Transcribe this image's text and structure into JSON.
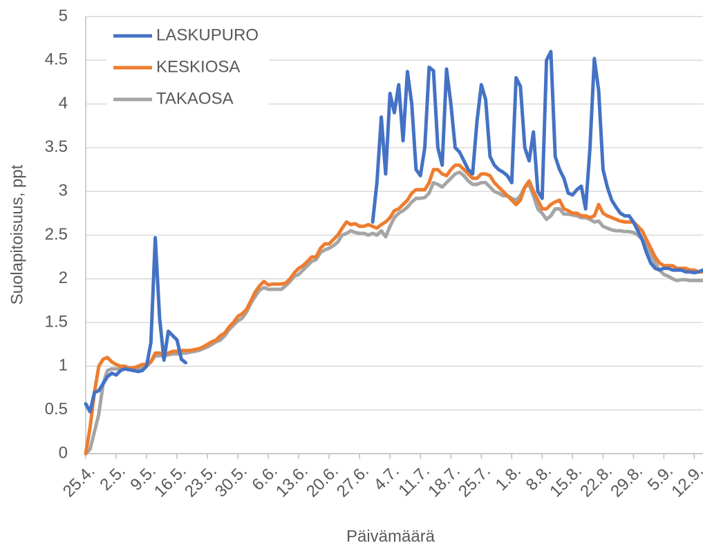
{
  "chart_data": {
    "type": "line",
    "x_label": "Päivämäärä",
    "y_label": "Suolapitoisuus, ppt",
    "categories": [
      "25.4.",
      null,
      null,
      null,
      null,
      null,
      null,
      "2.5.",
      null,
      null,
      null,
      null,
      null,
      null,
      "9.5.",
      null,
      null,
      null,
      null,
      null,
      null,
      "16.5.",
      null,
      null,
      null,
      null,
      null,
      null,
      "23.5.",
      null,
      null,
      null,
      null,
      null,
      null,
      "30.5.",
      null,
      null,
      null,
      null,
      null,
      null,
      "6.6.",
      null,
      null,
      null,
      null,
      null,
      null,
      "13.6.",
      null,
      null,
      null,
      null,
      null,
      null,
      "20.6.",
      null,
      null,
      null,
      null,
      null,
      null,
      "27.6.",
      null,
      null,
      null,
      null,
      null,
      null,
      "4.7.",
      null,
      null,
      null,
      null,
      null,
      null,
      "11.7.",
      null,
      null,
      null,
      null,
      null,
      null,
      "18.7.",
      null,
      null,
      null,
      null,
      null,
      null,
      "25.7.",
      null,
      null,
      null,
      null,
      null,
      null,
      "1.8.",
      null,
      null,
      null,
      null,
      null,
      null,
      "8.8.",
      null,
      null,
      null,
      null,
      null,
      null,
      "15.8.",
      null,
      null,
      null,
      null,
      null,
      null,
      "22.8.",
      null,
      null,
      null,
      null,
      null,
      null,
      "29.8.",
      null,
      null,
      null,
      null,
      null,
      null,
      "5.9.",
      null,
      null,
      null,
      null,
      null,
      null,
      "12.9.",
      null,
      null
    ],
    "series": [
      {
        "name": "LASKUPURO",
        "color": "#4472c4",
        "values": [
          0.57,
          0.48,
          0.7,
          0.72,
          0.8,
          0.88,
          0.92,
          0.9,
          0.95,
          0.97,
          0.96,
          0.95,
          0.94,
          0.95,
          1.0,
          1.27,
          2.47,
          1.55,
          1.07,
          1.4,
          1.35,
          1.3,
          1.08,
          1.04,
          null,
          null,
          null,
          null,
          null,
          null,
          null,
          null,
          null,
          null,
          null,
          null,
          null,
          null,
          null,
          null,
          null,
          null,
          null,
          null,
          null,
          null,
          null,
          null,
          null,
          null,
          null,
          null,
          null,
          null,
          null,
          null,
          null,
          null,
          null,
          null,
          null,
          null,
          null,
          null,
          null,
          null,
          2.65,
          3.1,
          3.85,
          3.2,
          4.12,
          3.9,
          4.22,
          3.58,
          4.37,
          4.0,
          3.25,
          3.18,
          3.5,
          4.42,
          4.38,
          3.5,
          3.3,
          4.4,
          4.0,
          3.5,
          3.45,
          3.35,
          3.25,
          3.2,
          3.8,
          4.22,
          4.05,
          3.4,
          3.3,
          3.25,
          3.22,
          3.18,
          3.1,
          4.3,
          4.2,
          3.5,
          3.35,
          3.68,
          3.0,
          2.92,
          4.5,
          4.6,
          3.4,
          3.25,
          3.15,
          2.98,
          2.96,
          3.02,
          3.06,
          2.8,
          3.5,
          4.52,
          4.15,
          3.25,
          3.05,
          2.9,
          2.82,
          2.75,
          2.72,
          2.72,
          2.65,
          2.55,
          2.45,
          2.3,
          2.18,
          2.12,
          2.1,
          2.12,
          2.12,
          2.1,
          2.1,
          2.1,
          2.08,
          2.08,
          2.07,
          2.08,
          2.1
        ]
      },
      {
        "name": "KESKIOSA",
        "color": "#ed7d31",
        "values": [
          0,
          0.3,
          0.7,
          1.0,
          1.08,
          1.1,
          1.05,
          1.02,
          1.0,
          1.0,
          0.98,
          0.98,
          1.0,
          1.02,
          1.02,
          1.05,
          1.15,
          1.15,
          1.13,
          1.15,
          1.17,
          1.17,
          1.18,
          1.18,
          1.18,
          1.19,
          1.2,
          1.22,
          1.25,
          1.28,
          1.3,
          1.35,
          1.38,
          1.45,
          1.5,
          1.57,
          1.6,
          1.65,
          1.75,
          1.85,
          1.92,
          1.97,
          1.93,
          1.94,
          1.94,
          1.94,
          1.95,
          2.0,
          2.07,
          2.12,
          2.15,
          2.2,
          2.25,
          2.25,
          2.35,
          2.4,
          2.4,
          2.45,
          2.5,
          2.58,
          2.65,
          2.62,
          2.63,
          2.6,
          2.6,
          2.62,
          2.6,
          2.58,
          2.62,
          2.65,
          2.7,
          2.78,
          2.8,
          2.85,
          2.9,
          2.98,
          3.02,
          3.02,
          3.02,
          3.1,
          3.25,
          3.25,
          3.2,
          3.18,
          3.25,
          3.3,
          3.3,
          3.25,
          3.2,
          3.15,
          3.15,
          3.2,
          3.2,
          3.18,
          3.1,
          3.05,
          3.0,
          2.95,
          2.9,
          2.85,
          2.9,
          3.05,
          3.12,
          3.0,
          2.9,
          2.8,
          2.8,
          2.85,
          2.88,
          2.9,
          2.8,
          2.78,
          2.75,
          2.75,
          2.72,
          2.72,
          2.7,
          2.72,
          2.85,
          2.75,
          2.72,
          2.7,
          2.68,
          2.66,
          2.65,
          2.65,
          2.65,
          2.6,
          2.55,
          2.45,
          2.35,
          2.25,
          2.18,
          2.15,
          2.15,
          2.15,
          2.12,
          2.12,
          2.12,
          2.1,
          2.1,
          2.08,
          2.08
        ]
      },
      {
        "name": "TAKAOSA",
        "color": "#a5a5a5",
        "values": [
          0,
          0.05,
          0.25,
          0.45,
          0.8,
          0.95,
          0.97,
          0.97,
          0.97,
          0.97,
          0.98,
          0.98,
          0.98,
          0.99,
          1.0,
          1.05,
          1.12,
          1.12,
          1.12,
          1.13,
          1.14,
          1.14,
          1.15,
          1.15,
          1.16,
          1.17,
          1.18,
          1.2,
          1.22,
          1.25,
          1.28,
          1.3,
          1.35,
          1.42,
          1.47,
          1.52,
          1.55,
          1.62,
          1.72,
          1.8,
          1.87,
          1.9,
          1.88,
          1.88,
          1.88,
          1.88,
          1.92,
          1.97,
          2.03,
          2.05,
          2.1,
          2.15,
          2.2,
          2.22,
          2.3,
          2.33,
          2.35,
          2.38,
          2.42,
          2.5,
          2.52,
          2.55,
          2.53,
          2.52,
          2.52,
          2.5,
          2.52,
          2.5,
          2.55,
          2.48,
          2.6,
          2.7,
          2.75,
          2.78,
          2.82,
          2.88,
          2.92,
          2.92,
          2.93,
          2.98,
          3.1,
          3.08,
          3.05,
          3.1,
          3.15,
          3.2,
          3.22,
          3.18,
          3.12,
          3.08,
          3.08,
          3.1,
          3.1,
          3.05,
          3.0,
          2.98,
          2.95,
          2.95,
          2.92,
          2.9,
          2.95,
          3.05,
          3.08,
          2.95,
          2.8,
          2.75,
          2.68,
          2.72,
          2.8,
          2.8,
          2.74,
          2.74,
          2.73,
          2.72,
          2.7,
          2.7,
          2.68,
          2.65,
          2.66,
          2.6,
          2.58,
          2.56,
          2.55,
          2.55,
          2.54,
          2.54,
          2.53,
          2.5,
          2.45,
          2.38,
          2.28,
          2.18,
          2.1,
          2.05,
          2.03,
          2.0,
          1.98,
          1.99,
          1.99,
          1.98,
          1.98,
          1.98,
          1.98
        ]
      }
    ],
    "ylim": [
      0,
      5
    ],
    "yticks": [
      0,
      0.5,
      1,
      1.5,
      2,
      2.5,
      3,
      3.5,
      4,
      4.5,
      5
    ],
    "grid": true,
    "legend": "upper-left"
  }
}
